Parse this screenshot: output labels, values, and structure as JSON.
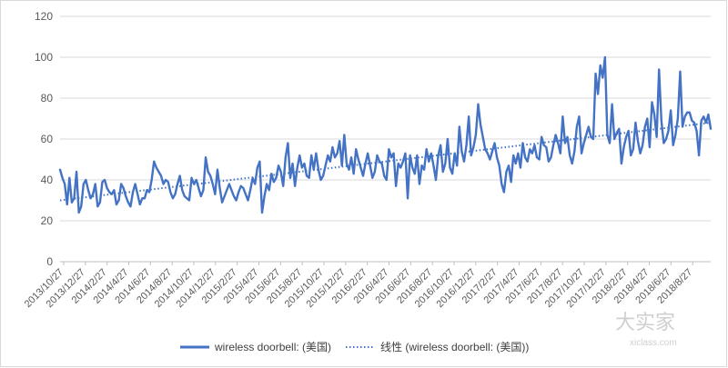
{
  "chart_data": {
    "type": "line",
    "title": "",
    "xlabel": "",
    "ylabel": "",
    "ylim": [
      0,
      120
    ],
    "yticks": [
      0,
      20,
      40,
      60,
      80,
      100,
      120
    ],
    "x_tick_labels": [
      "2013/10/27",
      "2013/12/27",
      "2014/2/27",
      "2014/4/27",
      "2014/6/27",
      "2014/8/27",
      "2014/10/27",
      "2014/12/27",
      "2015/2/27",
      "2015/4/27",
      "2015/6/27",
      "2015/8/27",
      "2015/10/27",
      "2015/12/27",
      "2016/2/27",
      "2016/4/27",
      "2016/6/27",
      "2016/8/27",
      "2016/10/27",
      "2016/12/27",
      "2017/2/27",
      "2017/4/27",
      "2017/6/27",
      "2017/8/27",
      "2017/10/27",
      "2017/12/27",
      "2018/2/27",
      "2018/4/27",
      "2018/6/27",
      "2018/8/27"
    ],
    "x_start": "2013/10/27",
    "x_interval": "week",
    "grid": "horizontal",
    "legend_position": "bottom",
    "series": [
      {
        "name": "wireless doorbell: (美国)",
        "color": "#4472c4",
        "style": "solid",
        "values": [
          45,
          41,
          38,
          28,
          41,
          29,
          31,
          44,
          24,
          27,
          38,
          40,
          35,
          31,
          33,
          38,
          27,
          29,
          39,
          40,
          36,
          34,
          33,
          35,
          28,
          30,
          38,
          36,
          32,
          29,
          27,
          34,
          38,
          33,
          28,
          31,
          31,
          35,
          34,
          40,
          49,
          46,
          44,
          42,
          38,
          40,
          39,
          34,
          31,
          33,
          38,
          42,
          35,
          32,
          31,
          30,
          41,
          38,
          40,
          36,
          32,
          35,
          51,
          44,
          42,
          38,
          33,
          45,
          36,
          29,
          32,
          35,
          38,
          35,
          32,
          30,
          34,
          37,
          36,
          33,
          30,
          35,
          41,
          38,
          46,
          49,
          24,
          32,
          38,
          35,
          43,
          39,
          41,
          47,
          44,
          37,
          51,
          58,
          41,
          48,
          37,
          46,
          52,
          46,
          48,
          42,
          41,
          52,
          45,
          53,
          45,
          40,
          42,
          47,
          52,
          49,
          56,
          51,
          53,
          59,
          47,
          62,
          48,
          45,
          51,
          43,
          55,
          50,
          46,
          42,
          48,
          53,
          47,
          41,
          44,
          52,
          49,
          48,
          42,
          40,
          55,
          51,
          53,
          37,
          48,
          46,
          49,
          53,
          31,
          52,
          46,
          43,
          52,
          38,
          47,
          45,
          55,
          49,
          53,
          47,
          40,
          52,
          57,
          44,
          48,
          60,
          46,
          43,
          53,
          47,
          66,
          54,
          49,
          57,
          71,
          52,
          56,
          62,
          77,
          67,
          61,
          55,
          53,
          50,
          54,
          58,
          51,
          47,
          38,
          34,
          44,
          47,
          39,
          52,
          48,
          53,
          46,
          58,
          51,
          49,
          55,
          53,
          57,
          51,
          50,
          61,
          57,
          56,
          49,
          51,
          57,
          62,
          58,
          53,
          71,
          58,
          61,
          52,
          48,
          54,
          66,
          71,
          53,
          58,
          62,
          66,
          61,
          60,
          92,
          82,
          96,
          90,
          100,
          62,
          58,
          77,
          60,
          63,
          65,
          48,
          56,
          61,
          64,
          52,
          55,
          68,
          59,
          53,
          57,
          66,
          70,
          56,
          78,
          72,
          61,
          94,
          69,
          58,
          60,
          64,
          74,
          57,
          62,
          70,
          93,
          66,
          71,
          73,
          73,
          69,
          68,
          64,
          52,
          69,
          71,
          68,
          72,
          65
        ]
      },
      {
        "name": "线性 (wireless doorbell: (美国))",
        "color": "#4472c4",
        "style": "dotted",
        "values": [
          30,
          68
        ]
      }
    ]
  },
  "legend": {
    "series_label": "wireless doorbell: (美国)",
    "trend_label": "线性 (wireless doorbell: (美国))"
  },
  "watermark": {
    "text": "大实家",
    "subtext": "xiclass.com"
  }
}
